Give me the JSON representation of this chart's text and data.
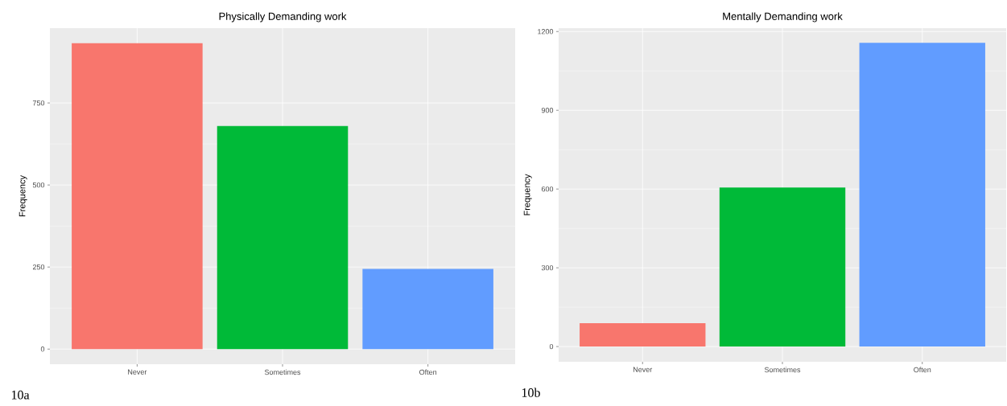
{
  "chart_data": [
    {
      "type": "bar",
      "title": "Physically Demanding work",
      "ylabel": "Frequency",
      "categories": [
        "Never",
        "Sometimes",
        "Often"
      ],
      "values": [
        932,
        680,
        244
      ],
      "colors": [
        "#f8766d",
        "#00ba38",
        "#619cff"
      ],
      "ylim": [
        -46,
        978
      ],
      "yticks": [
        0,
        250,
        500,
        750
      ],
      "grid": true,
      "annotations": [
        "10a"
      ]
    },
    {
      "type": "bar",
      "title": "Mentally Demanding work",
      "ylabel": "Frequency",
      "categories": [
        "Never",
        "Sometimes",
        "Often"
      ],
      "values": [
        89,
        606,
        1157
      ],
      "colors": [
        "#f8766d",
        "#00ba38",
        "#619cff"
      ],
      "ylim": [
        -58,
        1213
      ],
      "yticks": [
        0,
        300,
        600,
        900,
        1200
      ],
      "grid": true,
      "annotations": [
        "10b"
      ]
    }
  ]
}
